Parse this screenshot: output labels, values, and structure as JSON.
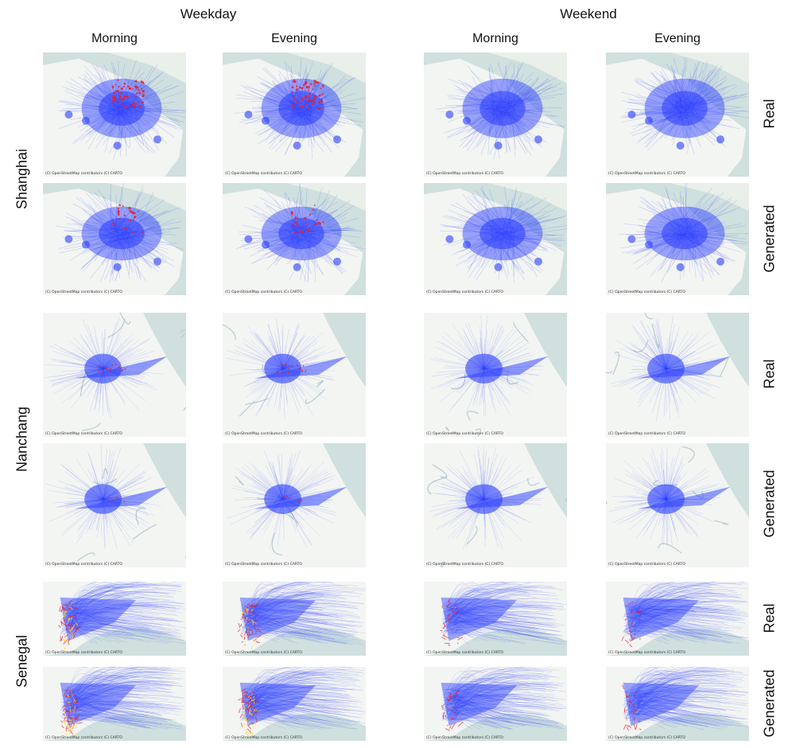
{
  "groups": [
    {
      "label": "Weekday"
    },
    {
      "label": "Weekend"
    }
  ],
  "columns": [
    {
      "label": "Morning"
    },
    {
      "label": "Evening"
    },
    {
      "label": "Morning"
    },
    {
      "label": "Evening"
    }
  ],
  "cities": [
    {
      "label": "Shanghai"
    },
    {
      "label": "Nanchang"
    },
    {
      "label": "Senegal"
    }
  ],
  "row_types": [
    {
      "label": "Real"
    },
    {
      "label": "Generated"
    },
    {
      "label": "Real"
    },
    {
      "label": "Generated"
    },
    {
      "label": "Real"
    },
    {
      "label": "Generated"
    }
  ],
  "map_credit": "(C) OpenStreetMap contributors (C) CARTO",
  "colors": {
    "water": "#cfe0de",
    "land": "#f3f5f2",
    "flow": "#2a3dff",
    "hotspot_red": "#ee1c25",
    "hotspot_yellow": "#ffd400"
  }
}
